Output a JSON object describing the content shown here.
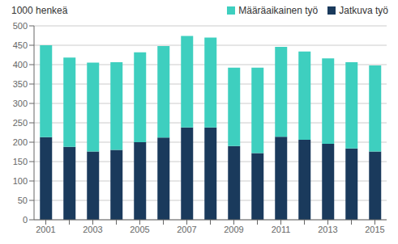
{
  "chart_data": {
    "type": "bar",
    "stacked": true,
    "ylabel": "1000 henkeä",
    "categories": [
      "2001",
      null,
      "2003",
      null,
      "2005",
      null,
      "2007",
      null,
      "2009",
      null,
      "2011",
      null,
      "2013",
      null,
      "2015"
    ],
    "series": [
      {
        "name": "Jatkuva työ",
        "color": "#1a3a5c",
        "values": [
          213,
          188,
          176,
          180,
          200,
          212,
          238,
          238,
          190,
          172,
          214,
          206,
          196,
          184,
          176
        ]
      },
      {
        "name": "Määräaikainen työ",
        "color": "#3ecfbf",
        "values": [
          237,
          230,
          229,
          226,
          232,
          236,
          236,
          232,
          202,
          220,
          232,
          228,
          220,
          222,
          222
        ]
      }
    ],
    "ylim": [
      0,
      500
    ],
    "yticks": [
      0,
      50,
      100,
      150,
      200,
      250,
      300,
      350,
      400,
      450,
      500
    ],
    "grid": true,
    "legend": "upper right"
  }
}
